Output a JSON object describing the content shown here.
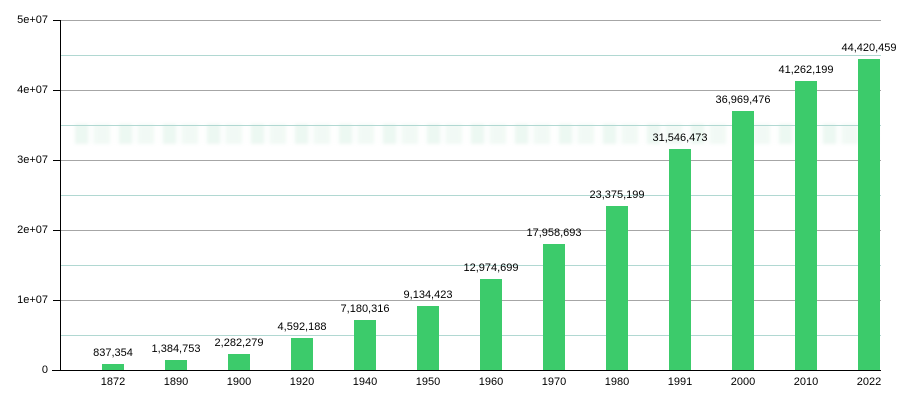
{
  "chart_data": {
    "type": "bar",
    "title": "",
    "xlabel": "",
    "ylabel": "",
    "categories": [
      "1872",
      "1890",
      "1900",
      "1920",
      "1940",
      "1950",
      "1960",
      "1970",
      "1980",
      "1991",
      "2000",
      "2010",
      "2022"
    ],
    "values": [
      837354,
      1384753,
      2282279,
      4592188,
      7180316,
      9134423,
      12974699,
      17958693,
      23375199,
      31546473,
      36969476,
      41262199,
      44420459
    ],
    "value_labels": [
      "837,354",
      "1,384,753",
      "2,282,279",
      "4,592,188",
      "7,180,316",
      "9,134,423",
      "12,974,699",
      "17,958,693",
      "23,375,199",
      "31,546,473",
      "36,969,476",
      "41,262,199",
      "44,420,459"
    ],
    "ylim": [
      0,
      50000000
    ],
    "yticks": [
      {
        "value": 0,
        "label": "0"
      },
      {
        "value": 10000000,
        "label": "1e+07"
      },
      {
        "value": 20000000,
        "label": "2e+07"
      },
      {
        "value": 30000000,
        "label": "3e+07"
      },
      {
        "value": 40000000,
        "label": "4e+07"
      },
      {
        "value": 50000000,
        "label": "5e+07"
      }
    ],
    "minor_yticks": [
      5000000,
      15000000,
      25000000,
      35000000,
      45000000
    ],
    "grid": {
      "horizontal_major": true,
      "horizontal_minor": true,
      "vertical": false
    },
    "legend_position": "none",
    "colors": {
      "bar": "#3ccb6b",
      "major_grid": "#a6a6a6",
      "minor_grid": "#b1d8d2",
      "axis": "#000000",
      "text": "#000000",
      "background": "#ffffff"
    }
  }
}
